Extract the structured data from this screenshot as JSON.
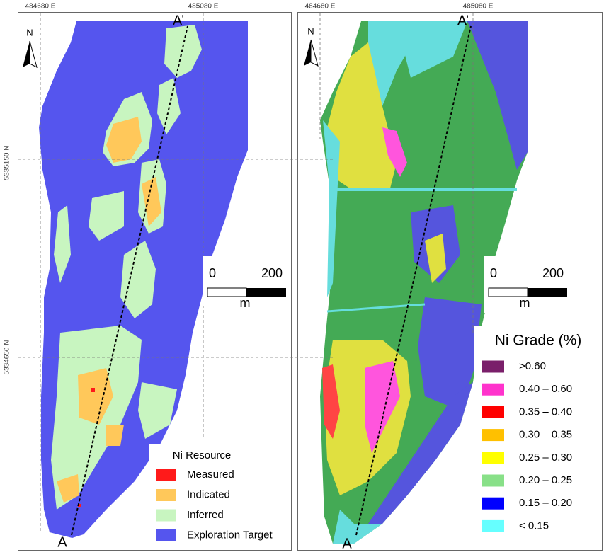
{
  "grid_labels": {
    "easting": [
      "484680 E",
      "485080 E"
    ],
    "northing": [
      "5335150 N",
      "5334650 N"
    ]
  },
  "left_panel": {
    "north": "N",
    "section": {
      "start": "A",
      "end": "A’"
    },
    "scale": {
      "labels": [
        "0",
        "200"
      ],
      "unit": "m"
    },
    "legend": {
      "title": "Ni Resource",
      "items": [
        {
          "label": "Measured",
          "color": "#ff1a1a"
        },
        {
          "label": "Indicated",
          "color": "#ffc85a"
        },
        {
          "label": "Inferred",
          "color": "#c8f5c0"
        },
        {
          "label": "Exploration Target",
          "color": "#5555ee"
        }
      ]
    }
  },
  "right_panel": {
    "north": "N",
    "section": {
      "start": "A",
      "end": "A’"
    },
    "scale": {
      "labels": [
        "0",
        "200"
      ],
      "unit": "m"
    },
    "legend": {
      "title": "Ni Grade (%)",
      "items": [
        {
          "label": ">0.60",
          "color": "#7a1f6a"
        },
        {
          "label": "0.40 – 0.60",
          "color": "#ff33cc"
        },
        {
          "label": "0.35 – 0.40",
          "color": "#ff0000"
        },
        {
          "label": "0.30 – 0.35",
          "color": "#ffc000"
        },
        {
          "label": "0.25 – 0.30",
          "color": "#ffff00"
        },
        {
          "label": "0.20 – 0.25",
          "color": "#88e088"
        },
        {
          "label": "0.15 – 0.20",
          "color": "#0000ff"
        },
        {
          "label": "< 0.15",
          "color": "#66ffff"
        }
      ]
    }
  }
}
